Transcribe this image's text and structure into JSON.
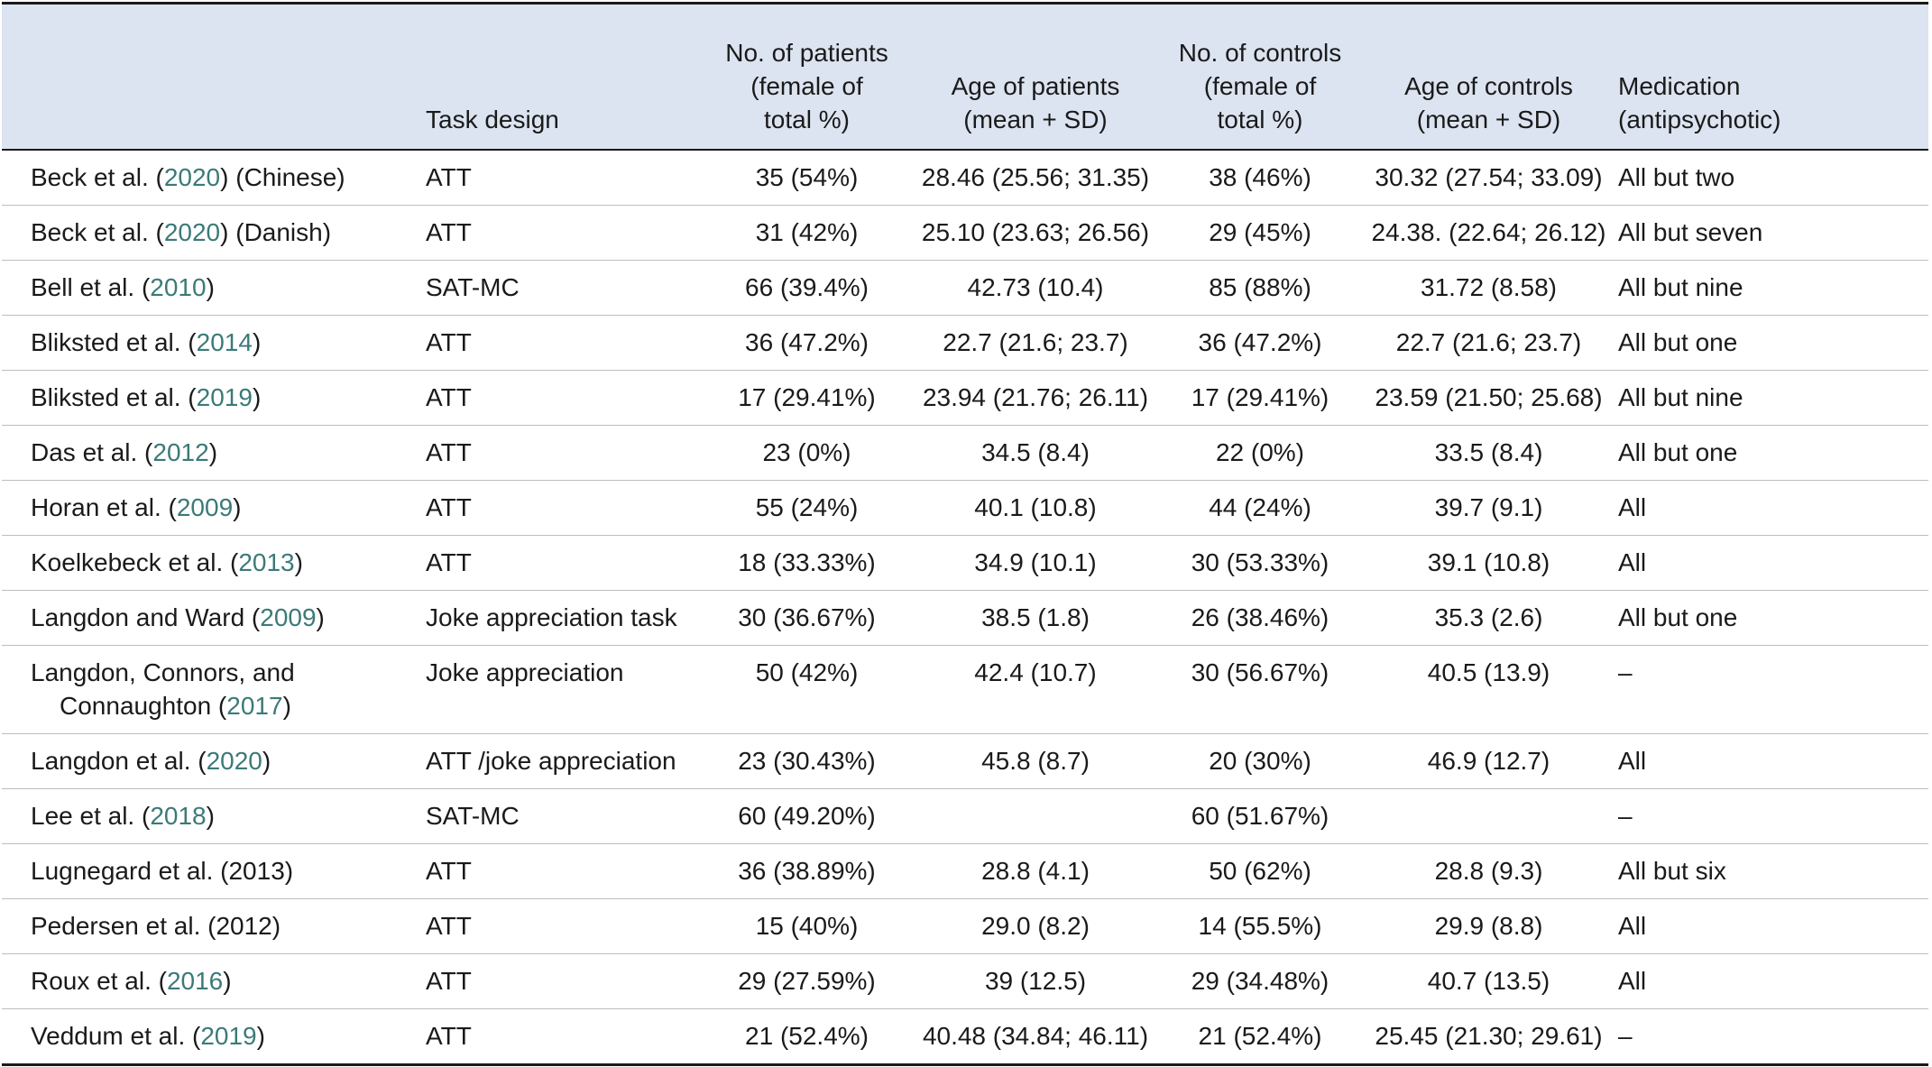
{
  "table": {
    "headers": {
      "study": "",
      "task": "Task design",
      "patients": [
        "No. of patients",
        "(female of",
        "total %)"
      ],
      "age_patients": [
        "Age of patients",
        "(mean + SD)"
      ],
      "controls": [
        "No. of controls",
        "(female of",
        "total %)"
      ],
      "age_controls": [
        "Age of controls",
        "(mean + SD)"
      ],
      "medication": [
        "Medication",
        "(antipsychotic)"
      ]
    },
    "rows": [
      {
        "study_pre": "Beck et al. (",
        "year": "2020",
        "study_post": ") (Chinese)",
        "task": "ATT",
        "patients": "35 (54%)",
        "age_patients": "28.46 (25.56; 31.35)",
        "controls": "38 (46%)",
        "age_controls": "30.32 (27.54; 33.09)",
        "medication": "All but two"
      },
      {
        "study_pre": "Beck et al. (",
        "year": "2020",
        "study_post": ") (Danish)",
        "task": "ATT",
        "patients": "31 (42%)",
        "age_patients": "25.10 (23.63; 26.56)",
        "controls": "29 (45%)",
        "age_controls": "24.38. (22.64; 26.12)",
        "medication": "All but seven"
      },
      {
        "study_pre": "Bell et al. (",
        "year": "2010",
        "study_post": ")",
        "task": "SAT-MC",
        "patients": "66 (39.4%)",
        "age_patients": "42.73 (10.4)",
        "controls": "85 (88%)",
        "age_controls": "31.72 (8.58)",
        "medication": "All but nine"
      },
      {
        "study_pre": "Bliksted et al. (",
        "year": "2014",
        "study_post": ")",
        "task": "ATT",
        "patients": "36 (47.2%)",
        "age_patients": "22.7 (21.6; 23.7)",
        "controls": "36 (47.2%)",
        "age_controls": "22.7 (21.6; 23.7)",
        "medication": "All but one"
      },
      {
        "study_pre": "Bliksted et al. (",
        "year": "2019",
        "study_post": ")",
        "task": "ATT",
        "patients": "17 (29.41%)",
        "age_patients": "23.94 (21.76; 26.11)",
        "controls": "17 (29.41%)",
        "age_controls": "23.59 (21.50; 25.68)",
        "medication": "All but nine"
      },
      {
        "study_pre": "Das et al. (",
        "year": "2012",
        "study_post": ")",
        "task": "ATT",
        "patients": "23 (0%)",
        "age_patients": "34.5 (8.4)",
        "controls": "22 (0%)",
        "age_controls": "33.5 (8.4)",
        "medication": "All but one"
      },
      {
        "study_pre": "Horan et al. (",
        "year": "2009",
        "study_post": ")",
        "task": "ATT",
        "patients": "55 (24%)",
        "age_patients": "40.1 (10.8)",
        "controls": "44 (24%)",
        "age_controls": "39.7 (9.1)",
        "medication": "All"
      },
      {
        "study_pre": "Koelkebeck et al. (",
        "year": "2013",
        "study_post": ")",
        "task": "ATT",
        "patients": "18 (33.33%)",
        "age_patients": "34.9 (10.1)",
        "controls": "30 (53.33%)",
        "age_controls": "39.1 (10.8)",
        "medication": "All"
      },
      {
        "study_pre": "Langdon and Ward (",
        "year": "2009",
        "study_post": ")",
        "task": "Joke appreciation task",
        "patients": "30 (36.67%)",
        "age_patients": "38.5 (1.8)",
        "controls": "26 (38.46%)",
        "age_controls": "35.3 (2.6)",
        "medication": "All but one"
      },
      {
        "study_pre": "Langdon, Connors, and",
        "study_line2_pre": "Connaughton (",
        "year": "2017",
        "study_post": ")",
        "task": "Joke appreciation",
        "patients": "50 (42%)",
        "age_patients": "42.4 (10.7)",
        "controls": "30 (56.67%)",
        "age_controls": "40.5 (13.9)",
        "medication": "–"
      },
      {
        "study_pre": "Langdon et al. (",
        "year": "2020",
        "study_post": ")",
        "task": "ATT /joke appreciation",
        "patients": "23 (30.43%)",
        "age_patients": "45.8 (8.7)",
        "controls": "20 (30%)",
        "age_controls": "46.9 (12.7)",
        "medication": "All"
      },
      {
        "study_pre": "Lee et al. (",
        "year": "2018",
        "study_post": ")",
        "task": "SAT-MC",
        "patients": "60 (49.20%)",
        "age_patients": "",
        "controls": "60 (51.67%)",
        "age_controls": "",
        "medication": "–"
      },
      {
        "study_pre": "Lugnegard et al. (2013)",
        "year": "",
        "study_post": "",
        "task": "ATT",
        "patients": "36 (38.89%)",
        "age_patients": "28.8 (4.1)",
        "controls": "50 (62%)",
        "age_controls": "28.8 (9.3)",
        "medication": "All but six"
      },
      {
        "study_pre": "Pedersen et al. (2012)",
        "year": "",
        "study_post": "",
        "task": "ATT",
        "patients": "15 (40%)",
        "age_patients": "29.0 (8.2)",
        "controls": "14 (55.5%)",
        "age_controls": "29.9 (8.8)",
        "medication": "All"
      },
      {
        "study_pre": "Roux et al. (",
        "year": "2016",
        "study_post": ")",
        "task": "ATT",
        "patients": "29 (27.59%)",
        "age_patients": "39 (12.5)",
        "controls": "29 (34.48%)",
        "age_controls": "40.7 (13.5)",
        "medication": "All"
      },
      {
        "study_pre": "Veddum et al. (",
        "year": "2019",
        "study_post": ")",
        "task": "ATT",
        "patients": "21 (52.4%)",
        "age_patients": "40.48 (34.84; 46.11)",
        "controls": "21 (52.4%)",
        "age_controls": "25.45 (21.30; 29.61)",
        "medication": "–"
      }
    ]
  }
}
